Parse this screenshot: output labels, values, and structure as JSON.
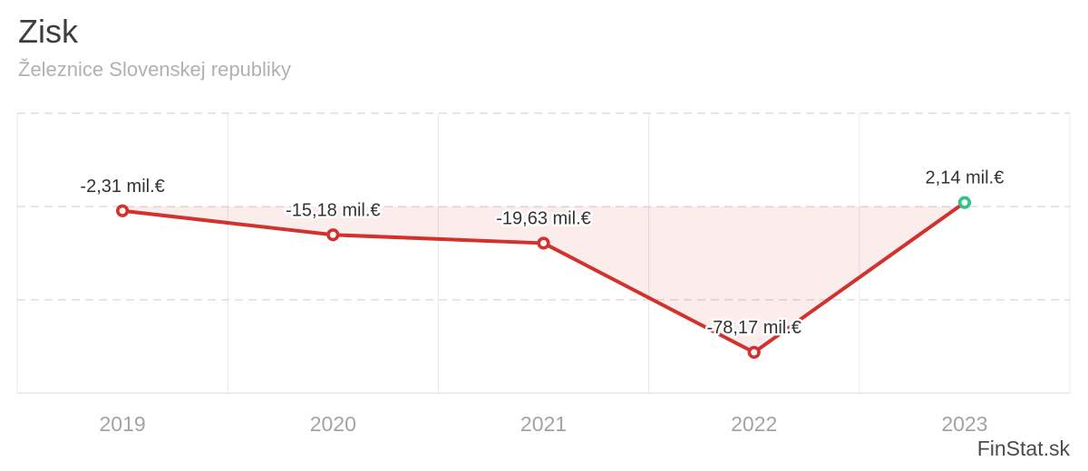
{
  "header": {
    "title": "Zisk",
    "subtitle": "Železnice Slovenskej republiky"
  },
  "footer": {
    "watermark": "FinStat.sk"
  },
  "chart_data": {
    "type": "area",
    "title": "Zisk",
    "subtitle": "Železnice Slovenskej republiky",
    "categories": [
      "2019",
      "2020",
      "2021",
      "2022",
      "2023"
    ],
    "values": [
      -2.31,
      -15.18,
      -19.63,
      -78.17,
      2.14
    ],
    "point_labels": [
      "-2,31 mil.€",
      "-15,18 mil.€",
      "-19,63 mil.€",
      "-78,17 mil.€",
      "2,14 mil.€"
    ],
    "unit": "mil.€",
    "xlabel": "",
    "ylabel": "",
    "ylim": [
      -100,
      50
    ],
    "threshold": 0,
    "grid_values": [
      50,
      0,
      -50
    ],
    "grid_style": "dashed",
    "legend": "none",
    "colors": {
      "line": "#d2322d",
      "area_fill": "rgba(210, 50, 45, 0.09)",
      "marker_fill": "#ffffff",
      "negative_marker": "#d2322d",
      "positive_marker": "#2ec487",
      "grid_dashed": "#dedede",
      "grid_solid": "#e7e7e7",
      "label_text": "#333333",
      "axis_text": "#a3a3a3"
    }
  }
}
